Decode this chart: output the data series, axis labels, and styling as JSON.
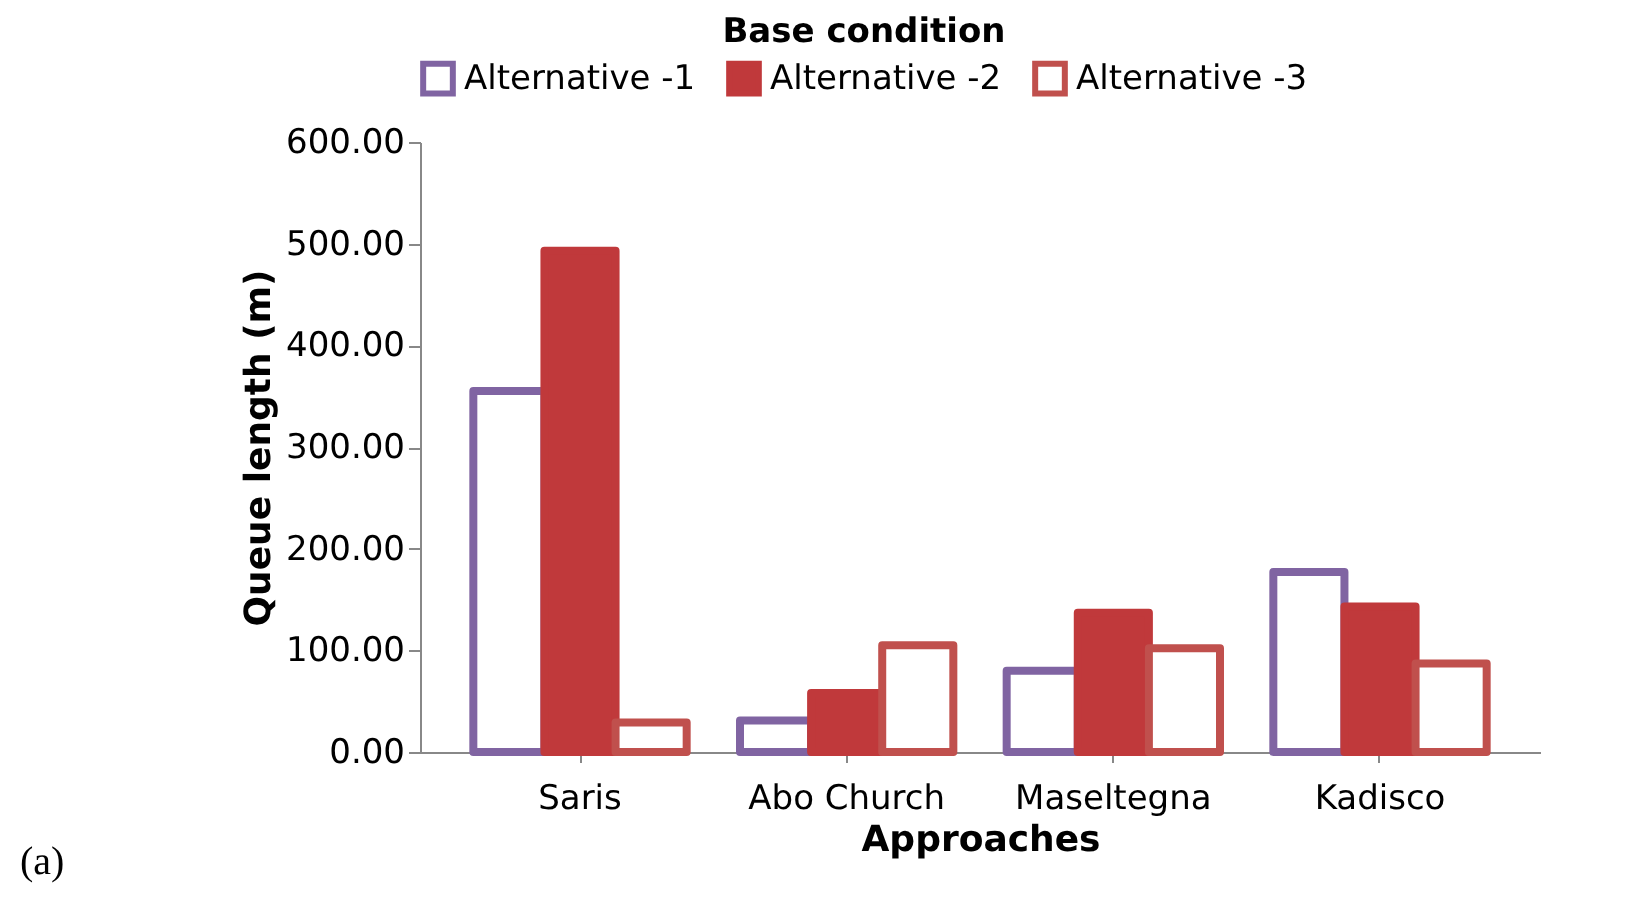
{
  "chart_data": {
    "type": "bar",
    "legend_title": "Base condition",
    "xlabel": "Approaches",
    "ylabel": "Queue length (m)",
    "categories": [
      "Saris",
      "Abo Church",
      "Maseltegna",
      "Kadisco"
    ],
    "series": [
      {
        "name": "Alternative -1",
        "color": "#8064a2",
        "values": [
          355,
          31,
          80,
          177
        ]
      },
      {
        "name": "Alternative -2",
        "color": "#c0393b",
        "values": [
          493,
          58,
          137,
          143
        ]
      },
      {
        "name": "Alternative -3",
        "color": "#c0504d",
        "values": [
          29,
          105,
          102,
          87
        ]
      }
    ],
    "ylim": [
      0,
      600
    ],
    "yticks": [
      {
        "value": 0,
        "label": "0.00"
      },
      {
        "value": 100,
        "label": "100.00"
      },
      {
        "value": 200,
        "label": "200.00"
      },
      {
        "value": 300,
        "label": "300.00"
      },
      {
        "value": 400,
        "label": "400.00"
      },
      {
        "value": 500,
        "label": "500.00"
      },
      {
        "value": 600,
        "label": "600.00"
      }
    ],
    "legend": "top",
    "grid": false,
    "annotations": [
      "(a)"
    ]
  }
}
